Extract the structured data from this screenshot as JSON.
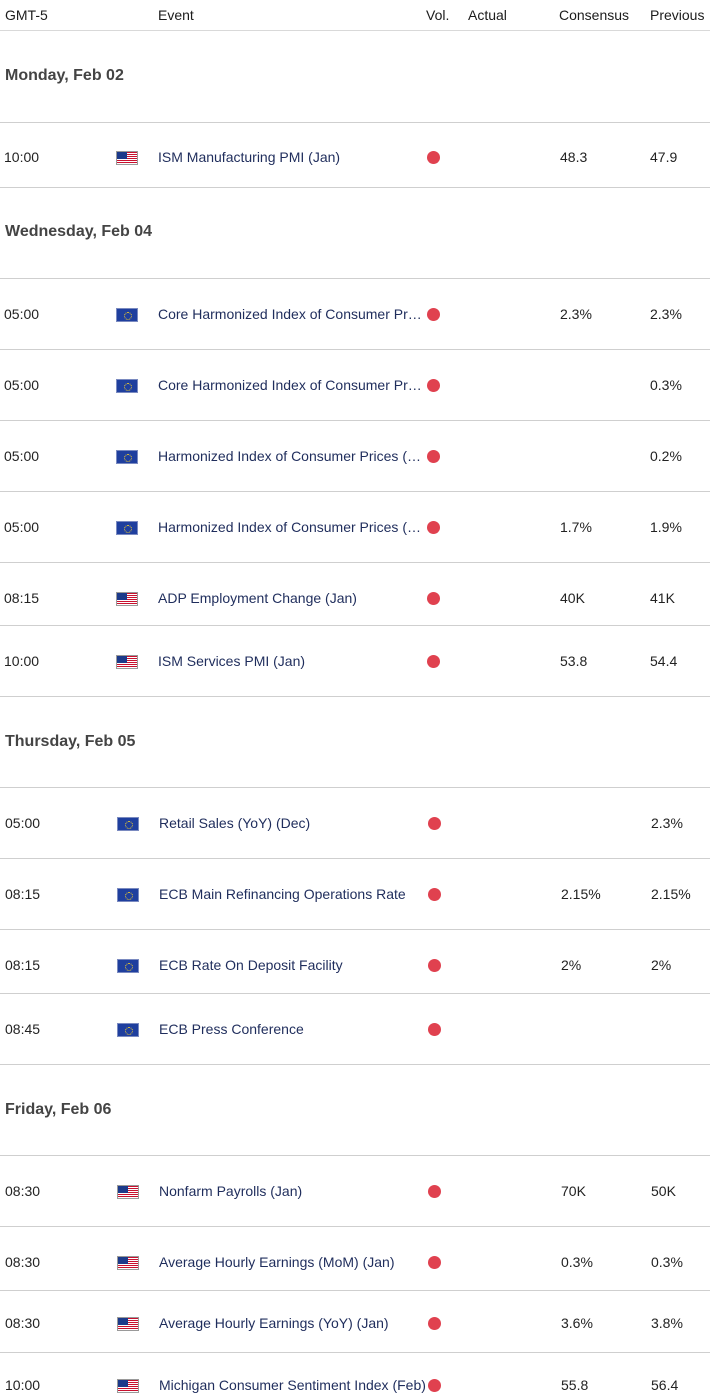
{
  "header": {
    "timezone": "GMT-5",
    "event": "Event",
    "vol": "Vol.",
    "actual": "Actual",
    "consensus": "Consensus",
    "previous": "Previous"
  },
  "days": [
    {
      "label": "Monday, Feb 02"
    },
    {
      "label": "Wednesday, Feb 04"
    },
    {
      "label": "Thursday, Feb 05"
    },
    {
      "label": "Friday, Feb 06"
    }
  ],
  "colors": {
    "volume_high": "#e0414f",
    "event_text": "#1f2d5c"
  },
  "events": [
    {
      "time": "10:00",
      "flag": "us-flag-icon",
      "name": "ISM Manufacturing PMI (Jan)",
      "actual": "",
      "consensus": "48.3",
      "previous": "47.9"
    },
    {
      "time": "05:00",
      "flag": "eu-flag-icon",
      "name": "Core Harmonized Index of Consumer Prices (YoY) (Jan)",
      "actual": "",
      "consensus": "2.3%",
      "previous": "2.3%"
    },
    {
      "time": "05:00",
      "flag": "eu-flag-icon",
      "name": "Core Harmonized Index of Consumer Prices (MoM) (Jan)",
      "actual": "",
      "consensus": "",
      "previous": "0.3%"
    },
    {
      "time": "05:00",
      "flag": "eu-flag-icon",
      "name": "Harmonized Index of Consumer Prices (MoM) (Jan)",
      "actual": "",
      "consensus": "",
      "previous": "0.2%"
    },
    {
      "time": "05:00",
      "flag": "eu-flag-icon",
      "name": "Harmonized Index of Consumer Prices (YoY) (Jan)",
      "actual": "",
      "consensus": "1.7%",
      "previous": "1.9%"
    },
    {
      "time": "08:15",
      "flag": "us-flag-icon",
      "name": "ADP Employment Change (Jan)",
      "actual": "",
      "consensus": "40K",
      "previous": "41K"
    },
    {
      "time": "10:00",
      "flag": "us-flag-icon",
      "name": "ISM Services PMI (Jan)",
      "actual": "",
      "consensus": "53.8",
      "previous": "54.4"
    },
    {
      "time": "05:00",
      "flag": "eu-flag-icon",
      "name": "Retail Sales (YoY) (Dec)",
      "actual": "",
      "consensus": "",
      "previous": "2.3%"
    },
    {
      "time": "08:15",
      "flag": "eu-flag-icon",
      "name": "ECB Main Refinancing Operations Rate",
      "actual": "",
      "consensus": "2.15%",
      "previous": "2.15%"
    },
    {
      "time": "08:15",
      "flag": "eu-flag-icon",
      "name": "ECB Rate On Deposit Facility",
      "actual": "",
      "consensus": "2%",
      "previous": "2%"
    },
    {
      "time": "08:45",
      "flag": "eu-flag-icon",
      "name": "ECB Press Conference",
      "actual": "",
      "consensus": "",
      "previous": ""
    },
    {
      "time": "08:30",
      "flag": "us-flag-icon",
      "name": "Nonfarm Payrolls (Jan)",
      "actual": "",
      "consensus": "70K",
      "previous": "50K"
    },
    {
      "time": "08:30",
      "flag": "us-flag-icon",
      "name": "Average Hourly Earnings (MoM) (Jan)",
      "actual": "",
      "consensus": "0.3%",
      "previous": "0.3%"
    },
    {
      "time": "08:30",
      "flag": "us-flag-icon",
      "name": "Average Hourly Earnings (YoY) (Jan)",
      "actual": "",
      "consensus": "3.6%",
      "previous": "3.8%"
    },
    {
      "time": "10:00",
      "flag": "us-flag-icon",
      "name": "Michigan Consumer Sentiment Index (Feb)",
      "actual": "",
      "consensus": "55.8",
      "previous": "56.4"
    }
  ]
}
